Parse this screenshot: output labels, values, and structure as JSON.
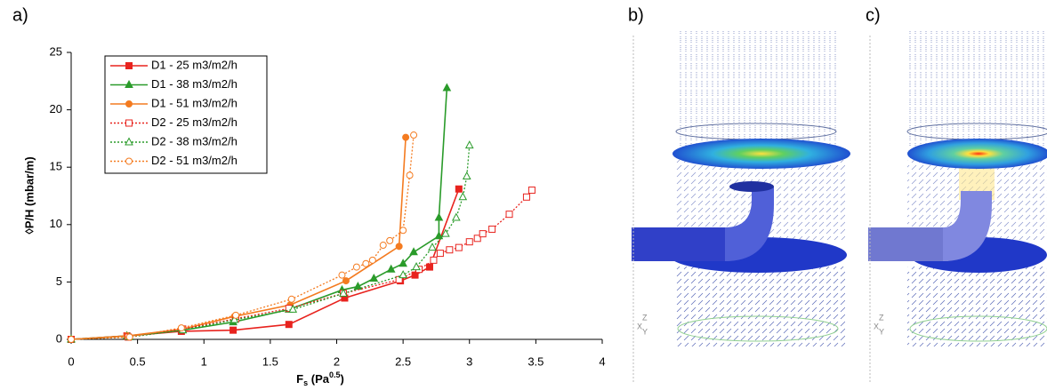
{
  "chart_data": {
    "type": "line",
    "xlabel": [
      "F",
      "s",
      " (Pa",
      "0.5",
      ")"
    ],
    "ylabel": "◊P/H (mbar/m)",
    "xlim": [
      0,
      4
    ],
    "xticks": [
      0,
      0.5,
      1,
      1.5,
      2,
      2.5,
      3,
      3.5,
      4
    ],
    "ylim": [
      0,
      25
    ],
    "yticks": [
      0,
      5,
      10,
      15,
      20,
      25
    ],
    "grid": false,
    "legend": "upper left",
    "series": [
      {
        "name": "D1 - 25 m3/m2/h",
        "color": "#e8231e",
        "marker": "square",
        "filled": true,
        "linestyle": "solid",
        "x": [
          0,
          0.42,
          0.83,
          1.22,
          1.64,
          2.06,
          2.48,
          2.59,
          2.7,
          2.92
        ],
        "values": [
          0,
          0.3,
          0.7,
          0.8,
          1.3,
          3.6,
          5.1,
          5.6,
          6.3,
          13.1
        ]
      },
      {
        "name": "D1 - 38 m3/m2/h",
        "color": "#2a9b2a",
        "marker": "triangle",
        "filled": true,
        "linestyle": "solid",
        "x": [
          0,
          0.42,
          0.84,
          1.22,
          1.64,
          2.04,
          2.16,
          2.28,
          2.41,
          2.5,
          2.58,
          2.77,
          2.77,
          2.83
        ],
        "values": [
          0,
          0.3,
          0.8,
          1.5,
          2.6,
          4.3,
          4.6,
          5.3,
          6.1,
          6.6,
          7.6,
          9.0,
          10.6,
          21.9
        ]
      },
      {
        "name": "D1 - 51 m3/m2/h",
        "color": "#f47b20",
        "marker": "circle",
        "filled": true,
        "linestyle": "solid",
        "x": [
          0,
          0.42,
          0.84,
          1.23,
          1.65,
          2.07,
          2.47,
          2.52
        ],
        "values": [
          0,
          0.3,
          0.9,
          2.0,
          3.0,
          5.1,
          8.1,
          17.6
        ]
      },
      {
        "name": "D2 - 25 m3/m2/h",
        "color": "#e8231e",
        "marker": "square",
        "filled": false,
        "linestyle": "dotted",
        "x": [
          0,
          0.43,
          0.84,
          1.24,
          1.64,
          2.05,
          2.47,
          2.62,
          2.73,
          2.78,
          2.85,
          2.92,
          3.0,
          3.06,
          3.1,
          3.17,
          3.3,
          3.43,
          3.47
        ],
        "values": [
          0,
          0.2,
          0.9,
          1.8,
          2.7,
          4.0,
          5.2,
          6.1,
          6.9,
          7.5,
          7.8,
          8.0,
          8.5,
          8.8,
          9.2,
          9.6,
          10.9,
          12.4,
          13.0
        ]
      },
      {
        "name": "D2 - 38 m3/m2/h",
        "color": "#2a9b2a",
        "marker": "triangle",
        "filled": false,
        "linestyle": "dotted",
        "x": [
          0,
          0.44,
          0.84,
          1.23,
          1.67,
          2.05,
          2.5,
          2.6,
          2.72,
          2.82,
          2.9,
          2.95,
          2.98,
          3.0
        ],
        "values": [
          0,
          0.2,
          0.8,
          1.7,
          2.6,
          4.0,
          5.6,
          6.3,
          8.0,
          9.2,
          10.6,
          12.4,
          14.2,
          16.9
        ]
      },
      {
        "name": "D2 - 51 m3/m2/h",
        "color": "#f47b20",
        "marker": "circle",
        "filled": false,
        "linestyle": "dotted",
        "x": [
          0,
          0.44,
          0.83,
          1.24,
          1.66,
          2.04,
          2.15,
          2.22,
          2.27,
          2.35,
          2.4,
          2.5,
          2.55,
          2.58
        ],
        "values": [
          0,
          0.2,
          1.0,
          2.1,
          3.5,
          5.6,
          6.3,
          6.6,
          6.9,
          8.2,
          8.6,
          9.5,
          14.3,
          17.8
        ]
      }
    ]
  },
  "panel_labels": [
    "a)",
    "b)",
    "c)"
  ],
  "triad_labels": [
    "X",
    "Y",
    "Z"
  ]
}
